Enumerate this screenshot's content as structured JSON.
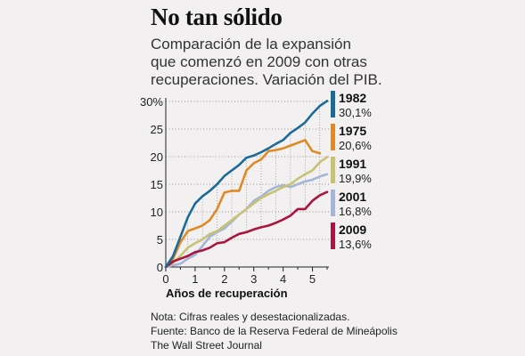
{
  "title": "No tan sólido",
  "subtitle_lines": [
    "Comparación de la expansión",
    "que comenzó en 2009 con otras",
    "recuperaciones. Variación del PIB."
  ],
  "notes": {
    "note": "Nota: Cifras reales y desestacionalizadas.",
    "source": "Fuente: Banco de la Reserva Federal de Mineápolis",
    "credit": "The Wall Street Journal"
  },
  "chart_data": {
    "type": "line",
    "xlabel": "Años de recuperación",
    "ylabel": "",
    "xlim": [
      0,
      5.5
    ],
    "ylim": [
      0,
      30
    ],
    "x_ticks": [
      "0",
      "1",
      "2",
      "3",
      "4",
      "5"
    ],
    "y_ticks": [
      "0",
      "5",
      "10",
      "15",
      "20",
      "25",
      "30%"
    ],
    "grid": "dotted horizontal",
    "legend_position": "right",
    "x": [
      0,
      0.25,
      0.5,
      0.75,
      1,
      1.25,
      1.5,
      1.75,
      2,
      2.25,
      2.5,
      2.75,
      3,
      3.25,
      3.5,
      3.75,
      4,
      4.25,
      4.5,
      4.75,
      5,
      5.25,
      5.5
    ],
    "series": [
      {
        "name": "1982",
        "value_label": "30,1%",
        "color": "#1c6a96",
        "values": [
          0,
          2.0,
          5.5,
          9.0,
          11.5,
          12.8,
          13.8,
          15.0,
          16.5,
          17.5,
          18.5,
          19.8,
          20.2,
          20.8,
          21.5,
          22.3,
          23.0,
          24.3,
          25.2,
          26.2,
          27.8,
          29.2,
          30.1
        ]
      },
      {
        "name": "1975",
        "value_label": "20,6%",
        "color": "#e08a25",
        "values": [
          0,
          1.5,
          4.5,
          6.5,
          7.0,
          7.5,
          8.5,
          10.5,
          13.5,
          13.8,
          13.8,
          17.5,
          18.8,
          19.5,
          21.0,
          21.2,
          21.5,
          22.0,
          22.5,
          23.0,
          21.0,
          20.6,
          null
        ]
      },
      {
        "name": "1991",
        "value_label": "19,9%",
        "color": "#c9c275",
        "values": [
          0,
          0.8,
          2.0,
          3.5,
          4.3,
          5.0,
          6.0,
          6.5,
          7.5,
          8.5,
          9.5,
          10.5,
          11.5,
          12.5,
          13.2,
          13.8,
          14.5,
          15.0,
          16.0,
          16.8,
          17.5,
          19.0,
          19.9
        ]
      },
      {
        "name": "2001",
        "value_label": "16,8%",
        "color": "#a4b5d6",
        "values": [
          0,
          0.3,
          0.6,
          1.5,
          2.2,
          3.8,
          5.5,
          6.3,
          7.0,
          8.2,
          9.5,
          10.5,
          12.0,
          12.8,
          13.8,
          14.5,
          14.8,
          14.5,
          15.0,
          15.5,
          15.8,
          16.4,
          16.8
        ]
      },
      {
        "name": "2009",
        "value_label": "13,6%",
        "color": "#a8163e",
        "values": [
          0,
          1.0,
          1.5,
          2.0,
          2.7,
          3.0,
          3.5,
          4.3,
          4.5,
          5.3,
          6.0,
          6.3,
          6.8,
          7.2,
          7.5,
          8.0,
          8.6,
          9.3,
          10.5,
          10.5,
          12.0,
          13.0,
          13.6
        ]
      }
    ]
  }
}
